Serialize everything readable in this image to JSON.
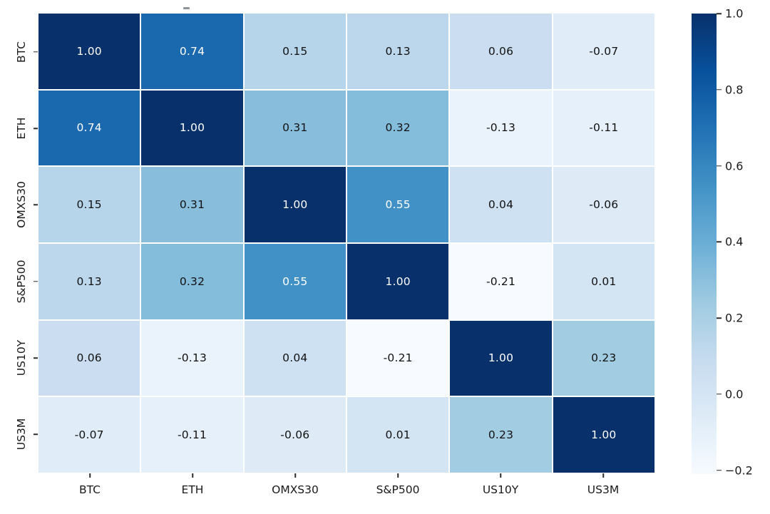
{
  "figure": {
    "background": "#ffffff",
    "text_color": "#1a1a1a"
  },
  "chart_data": {
    "type": "heatmap",
    "title": "",
    "xlabel": "",
    "ylabel": "",
    "categories": [
      "BTC",
      "ETH",
      "OMXS30",
      "S&P500",
      "US10Y",
      "US3M"
    ],
    "matrix": [
      [
        1.0,
        0.74,
        0.15,
        0.13,
        0.06,
        -0.07
      ],
      [
        0.74,
        1.0,
        0.31,
        0.32,
        -0.13,
        -0.11
      ],
      [
        0.15,
        0.31,
        1.0,
        0.55,
        0.04,
        -0.06
      ],
      [
        0.13,
        0.32,
        0.55,
        1.0,
        -0.21,
        0.01
      ],
      [
        0.06,
        -0.13,
        0.04,
        -0.21,
        1.0,
        0.23
      ],
      [
        -0.07,
        -0.11,
        -0.06,
        0.01,
        0.23,
        1.0
      ]
    ],
    "annotation_format": ".2f",
    "annotation_colors": {
      "light_cells": "#111111",
      "dark_cells": "#ffffff"
    },
    "colormap": "Blues",
    "vmin": -0.21,
    "vmax": 1.0,
    "grid_line_color": "#ffffff",
    "grid_on": true,
    "legend_position": "none",
    "colorbar": {
      "position": "right",
      "ticks": [
        1.0,
        0.8,
        0.6,
        0.4,
        0.2,
        0.0,
        -0.2
      ],
      "tick_labels": [
        "1.0",
        "0.8",
        "0.6",
        "0.4",
        "0.2",
        "0.0",
        "−0.2"
      ]
    }
  }
}
